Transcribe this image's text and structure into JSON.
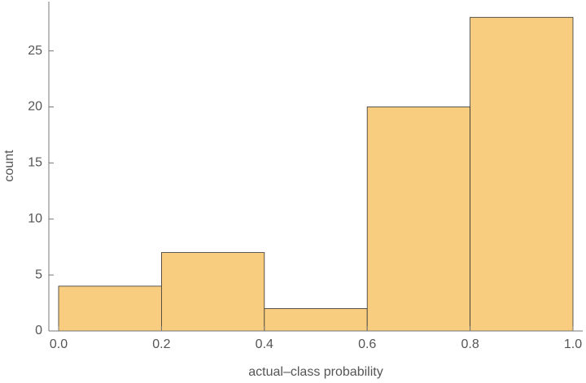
{
  "chart_data": {
    "type": "histogram",
    "bins": [
      0,
      0.2,
      0.4,
      0.6,
      0.8,
      1
    ],
    "counts": [
      4,
      7,
      2,
      20,
      28
    ],
    "color": "#f9cd80",
    "xlabel": "actual–class probability",
    "ylabel": "count",
    "xlim": [
      -0.019,
      1.019
    ],
    "ylim": [
      0,
      29.4
    ],
    "xticks": [
      {
        "value": 0,
        "label": "0.0"
      },
      0.2,
      0.4,
      0.6,
      0.8,
      {
        "value": 1,
        "label": "1.0"
      }
    ],
    "yticks": [
      0,
      5,
      10,
      15,
      20,
      25
    ]
  }
}
